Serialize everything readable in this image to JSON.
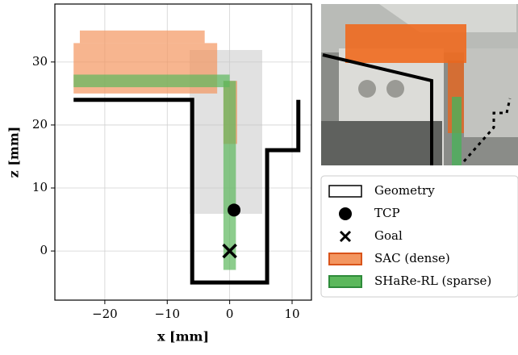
{
  "chart_data": {
    "type": "scatter",
    "xlabel": "x [mm]",
    "ylabel": "z [mm]",
    "xlim": [
      -28,
      13.1
    ],
    "ylim": [
      -7.8,
      39.2
    ],
    "xticks": [
      {
        "value": -20,
        "label": "−20"
      },
      {
        "value": -10,
        "label": "−10"
      },
      0,
      10
    ],
    "yticks": [
      0,
      10,
      20,
      30
    ],
    "grid": true,
    "series": [
      {
        "name": "Geometry",
        "kind": "line",
        "color": "#000000",
        "x": [
          -25,
          -6,
          -6,
          6,
          6,
          11,
          11
        ],
        "y": [
          24,
          24,
          -5,
          -5,
          16,
          16,
          24
        ]
      },
      {
        "name": "TCP",
        "kind": "circle",
        "color": "#000000",
        "x": [
          0.7
        ],
        "y": [
          6.5
        ]
      },
      {
        "name": "Goal",
        "kind": "cross",
        "color": "#000000",
        "x": [
          0
        ],
        "y": [
          0
        ]
      },
      {
        "name": "SAC (dense)",
        "kind": "cloud",
        "color": "#f39660",
        "edge": "#d9541a",
        "regions": [
          [
            -25,
            -2,
            25,
            33
          ],
          [
            -24,
            -4,
            33,
            35
          ],
          [
            -1,
            1.2,
            17,
            27
          ]
        ]
      },
      {
        "name": "SHaRe-RL (sparse)",
        "kind": "cloud",
        "color": "#5cb85c",
        "edge": "#2e8b3a",
        "regions": [
          [
            -1,
            1,
            -3,
            27
          ],
          [
            -25,
            0,
            26,
            28
          ]
        ]
      }
    ]
  }
}
